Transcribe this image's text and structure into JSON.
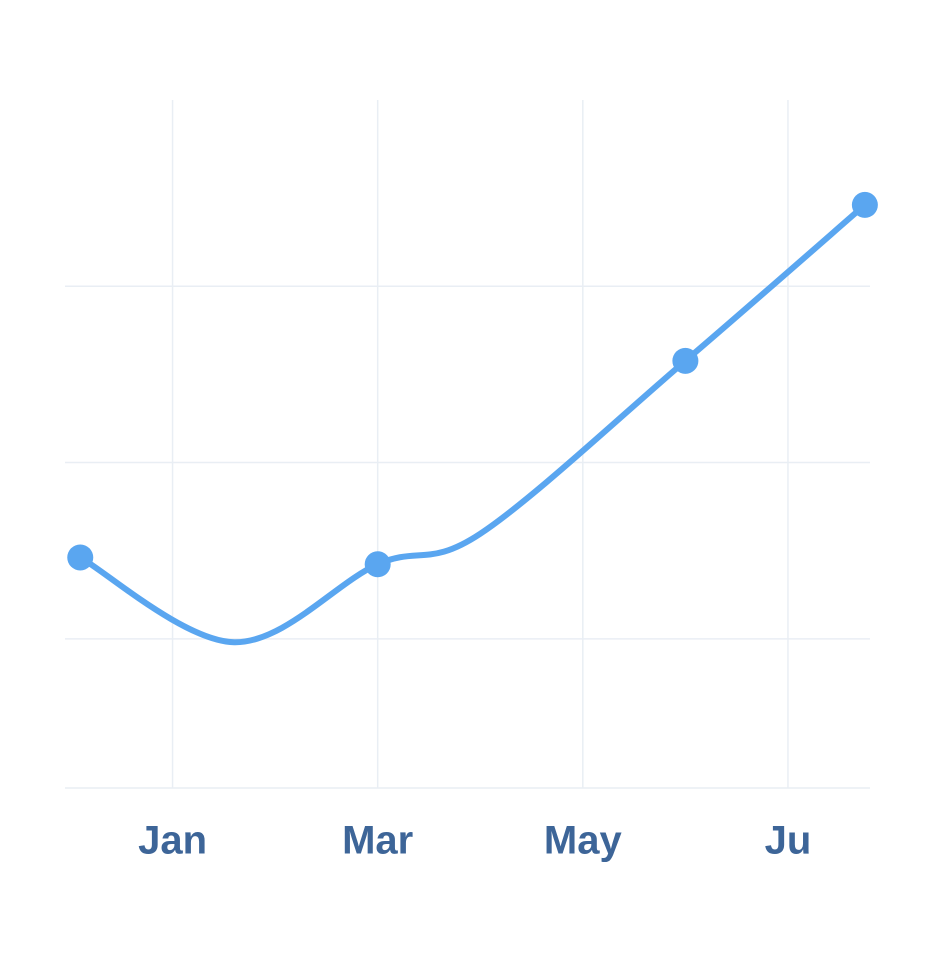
{
  "chart_data": {
    "type": "line",
    "xlim": [
      0,
      7.8
    ],
    "xticks": [
      {
        "value": 1,
        "label": "Jan"
      },
      {
        "value": 3,
        "label": "Mar"
      },
      {
        "value": 5,
        "label": "May"
      },
      {
        "value": 7,
        "label": "Ju"
      }
    ],
    "ylim": [
      0,
      100
    ],
    "yticks": [
      0,
      22,
      48,
      74
    ],
    "grid": true,
    "series": [
      {
        "color": "#5aa6f0",
        "markers": false,
        "x": [
          0.1,
          1.6,
          3,
          4.0,
          6,
          7.75
        ],
        "values": [
          34,
          21.5,
          33,
          37.5,
          63,
          86
        ]
      },
      {
        "color": "#5aa6f0",
        "markers": true,
        "line": false,
        "x": [
          0.1,
          3,
          6,
          7.75
        ],
        "values": [
          34,
          33,
          63,
          86
        ]
      }
    ]
  }
}
